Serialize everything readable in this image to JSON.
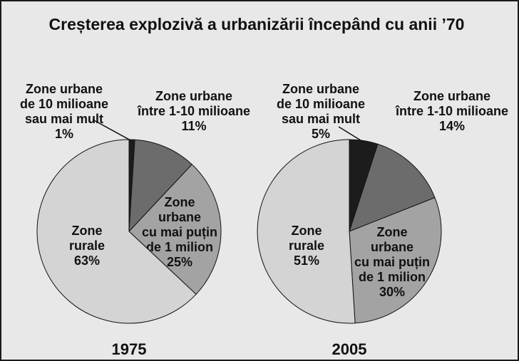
{
  "title": "Creșterea explozivă a urbanizării începând cu anii ’70",
  "chart_data": [
    {
      "type": "pie",
      "year": "1975",
      "slices": [
        {
          "key": "mega",
          "lines": [
            "Zone urbane",
            "de 10 milioane",
            "sau mai mult",
            "1%"
          ],
          "value": 1,
          "color": "#1c1c1c"
        },
        {
          "key": "mid",
          "lines": [
            "Zone urbane",
            "între 1-10 milioane",
            "11%"
          ],
          "value": 11,
          "color": "#6c6c6c"
        },
        {
          "key": "small",
          "lines": [
            "Zone",
            "urbane",
            "cu mai puțin",
            "de 1 milion",
            "25%"
          ],
          "value": 25,
          "color": "#a3a3a3"
        },
        {
          "key": "rural",
          "lines": [
            "Zone",
            "rurale",
            "63%"
          ],
          "value": 63,
          "color": "#d4d4d4"
        }
      ]
    },
    {
      "type": "pie",
      "year": "2005",
      "slices": [
        {
          "key": "mega",
          "lines": [
            "Zone urbane",
            "de 10 milioane",
            "sau mai mult",
            "5%"
          ],
          "value": 5,
          "color": "#1c1c1c"
        },
        {
          "key": "mid",
          "lines": [
            "Zone urbane",
            "între 1-10 milioane",
            "14%"
          ],
          "value": 14,
          "color": "#6c6c6c"
        },
        {
          "key": "small",
          "lines": [
            "Zone",
            "urbane",
            "cu mai puțin",
            "de 1 milion",
            "30%"
          ],
          "value": 30,
          "color": "#a3a3a3"
        },
        {
          "key": "rural",
          "lines": [
            "Zone",
            "rurale",
            "51%"
          ],
          "value": 51,
          "color": "#d4d4d4"
        }
      ]
    }
  ]
}
